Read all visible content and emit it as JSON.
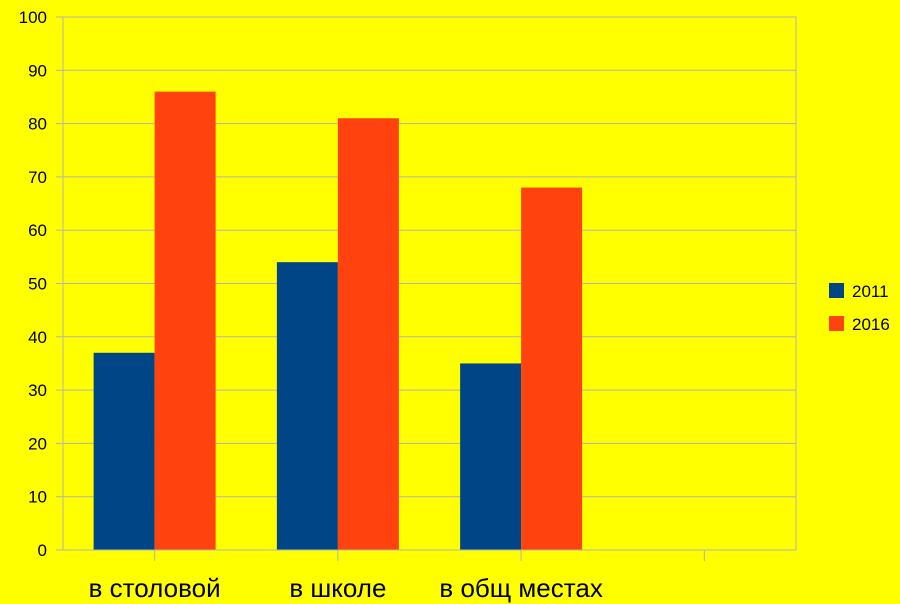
{
  "chart_data": {
    "type": "bar",
    "categories": [
      "в столовой",
      "в школе",
      "в общ местах",
      ""
    ],
    "series": [
      {
        "name": "2011",
        "values": [
          37,
          54,
          35,
          null
        ],
        "color": "#004586"
      },
      {
        "name": "2016",
        "values": [
          86,
          81,
          68,
          null
        ],
        "color": "#ff420e"
      }
    ],
    "ylim": [
      0,
      100
    ],
    "yticks": [
      "0",
      "10",
      "20",
      "30",
      "40",
      "50",
      "60",
      "70",
      "80",
      "90",
      "100"
    ],
    "grid": true,
    "legend_position": "right",
    "colors": {
      "background": "#ffff00",
      "grid": "#b3b3b3"
    }
  }
}
